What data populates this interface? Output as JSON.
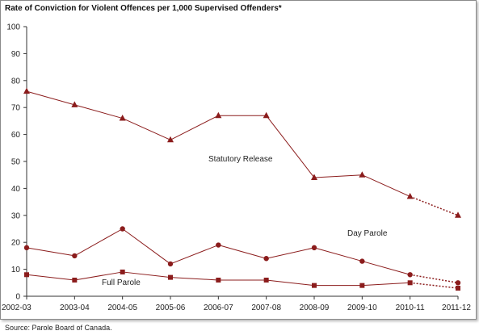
{
  "chart_data": {
    "type": "line",
    "title": "Rate of Conviction for Violent Offences per 1,000 Supervised Offenders*",
    "source": "Source:  Parole Board of Canada.",
    "categories": [
      "2002-03",
      "2003-04",
      "2004-05",
      "2005-06",
      "2006-07",
      "2007-08",
      "2008-09",
      "2009-10",
      "2010-11",
      "2011-12"
    ],
    "ylim": [
      0,
      100
    ],
    "yticks": [
      0,
      10,
      20,
      30,
      40,
      50,
      60,
      70,
      80,
      90,
      100
    ],
    "grid": false,
    "line_color": "#8b1c1c",
    "dotted_last_segment": true,
    "series": [
      {
        "name": "Statutory Release",
        "marker": "triangle",
        "values": [
          76,
          71,
          66,
          58,
          67,
          67,
          44,
          45,
          37,
          30
        ]
      },
      {
        "name": "Day Parole",
        "marker": "circle",
        "values": [
          18,
          15,
          25,
          12,
          19,
          14,
          18,
          13,
          8,
          5
        ]
      },
      {
        "name": "Full Parole",
        "marker": "square",
        "values": [
          8,
          6,
          9,
          7,
          6,
          6,
          4,
          4,
          5,
          3
        ]
      }
    ]
  }
}
